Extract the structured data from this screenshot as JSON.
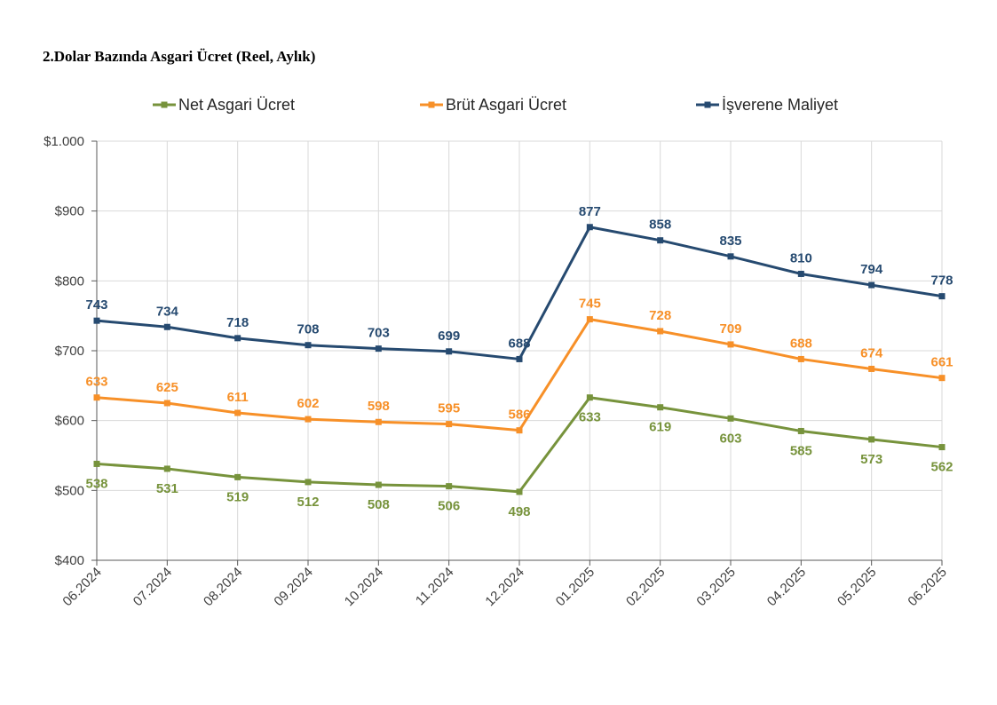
{
  "page": {
    "title": "2.Dolar Bazında Asgari Ücret (Reel, Aylık)"
  },
  "chart_data": {
    "type": "line",
    "title": "2.Dolar Bazında Asgari Ücret (Reel, Aylık)",
    "xlabel": "",
    "ylabel": "",
    "categories": [
      "06.2024",
      "07.2024",
      "08.2024",
      "09.2024",
      "10.2024",
      "11.2024",
      "12.2024",
      "01.2025",
      "02.2025",
      "03.2025",
      "04.2025",
      "05.2025",
      "06.2025"
    ],
    "ylim": [
      400,
      1000
    ],
    "yticks": [
      400,
      500,
      600,
      700,
      800,
      900,
      1000
    ],
    "ytick_labels": [
      "$400",
      "$500",
      "$600",
      "$700",
      "$800",
      "$900",
      "$1.000"
    ],
    "grid": true,
    "legend_position": "top",
    "series": [
      {
        "name": "Net Asgari Ücret",
        "color": "#77933c",
        "label_position": "below",
        "values": [
          538,
          531,
          519,
          512,
          508,
          506,
          498,
          633,
          619,
          603,
          585,
          573,
          562
        ]
      },
      {
        "name": "Brüt Asgari Ücret",
        "color": "#f79028",
        "label_position": "above",
        "values": [
          633,
          625,
          611,
          602,
          598,
          595,
          586,
          745,
          728,
          709,
          688,
          674,
          661
        ]
      },
      {
        "name": "İşverene Maliyet",
        "color": "#264a70",
        "label_position": "above",
        "values": [
          743,
          734,
          718,
          708,
          703,
          699,
          688,
          877,
          858,
          835,
          810,
          794,
          778
        ]
      }
    ]
  }
}
